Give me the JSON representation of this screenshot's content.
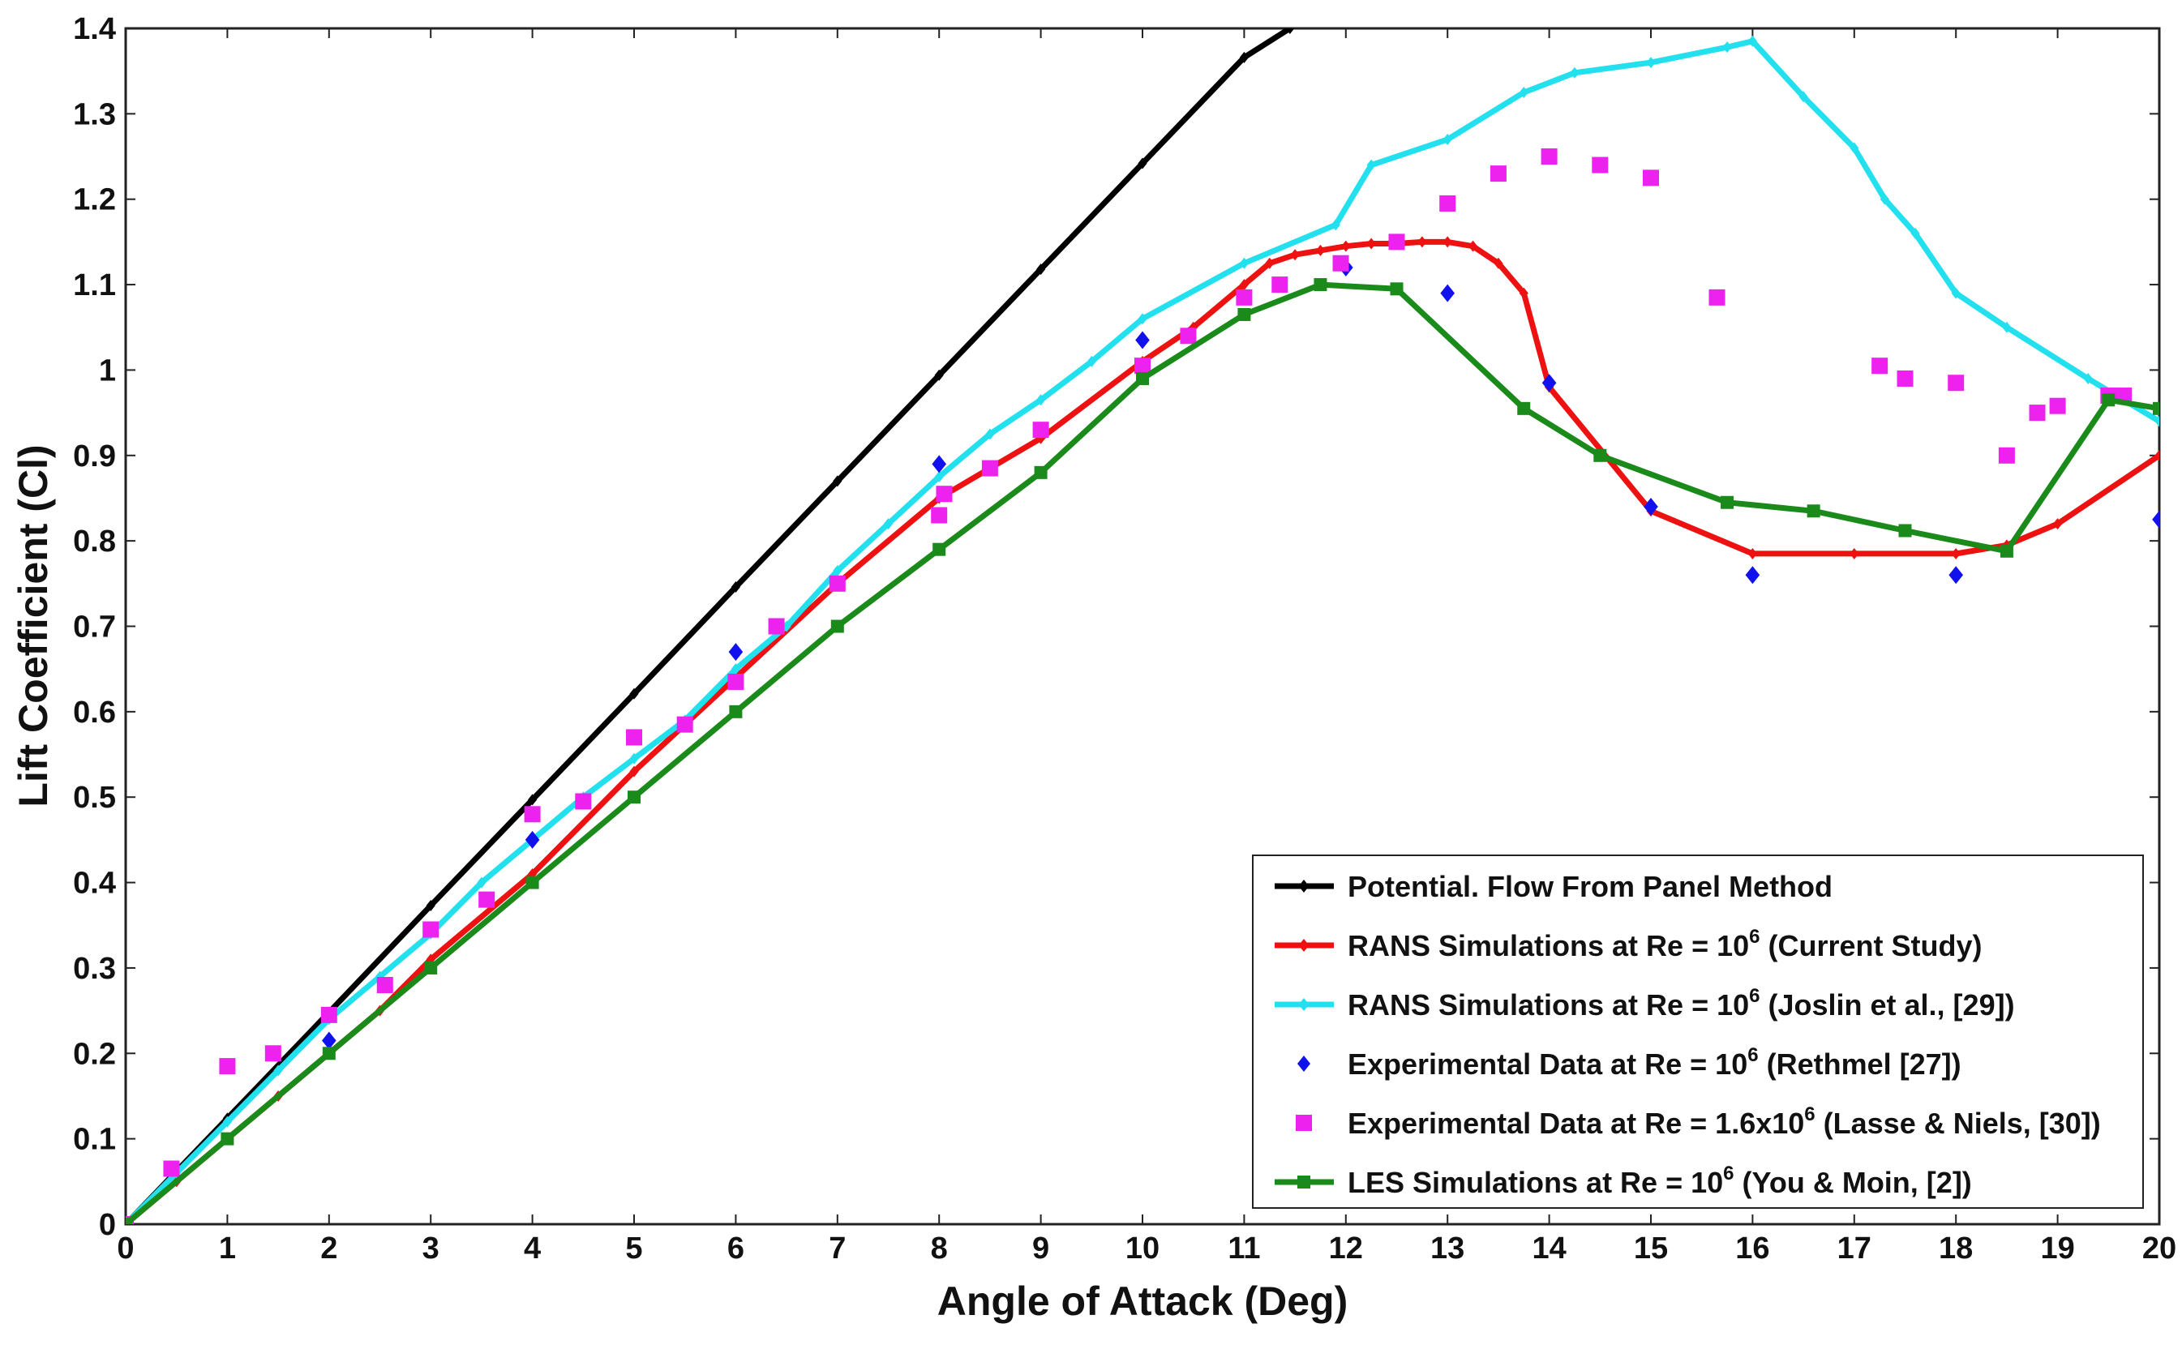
{
  "chart_data": {
    "type": "line",
    "title": "",
    "xlabel": "Angle of Attack (Deg)",
    "ylabel": "Lift Coefficient (Cl)",
    "xlim": [
      0,
      20
    ],
    "ylim": [
      0,
      1.4
    ],
    "xticks": [
      "0",
      "1",
      "2",
      "3",
      "4",
      "5",
      "6",
      "7",
      "8",
      "9",
      "10",
      "11",
      "12",
      "13",
      "14",
      "15",
      "16",
      "17",
      "18",
      "19",
      "20"
    ],
    "yticks": [
      "0",
      "0.1",
      "0.2",
      "0.3",
      "0.4",
      "0.5",
      "0.6",
      "0.7",
      "0.8",
      "0.9",
      "1",
      "1.1",
      "1.2",
      "1.3",
      "1.4"
    ],
    "legend_position": "bottom-right",
    "series": [
      {
        "name": "Potential. Flow From Panel Method",
        "legend": {
          "pre": "Potential. Flow From Panel Method",
          "sup": "",
          "post": ""
        },
        "color": "#000000",
        "line": true,
        "marker": "diamond",
        "points": [
          [
            0,
            0
          ],
          [
            1,
            0.124
          ],
          [
            2,
            0.248
          ],
          [
            3,
            0.373
          ],
          [
            4,
            0.497
          ],
          [
            5,
            0.621
          ],
          [
            6,
            0.746
          ],
          [
            7,
            0.87
          ],
          [
            8,
            0.994
          ],
          [
            9,
            1.118
          ],
          [
            10,
            1.242
          ],
          [
            11,
            1.366
          ],
          [
            11.45,
            1.4
          ]
        ]
      },
      {
        "name": "RANS Simulations at Re = 10^6 (Current Study)",
        "legend": {
          "pre": "RANS Simulations at Re = 10",
          "sup": "6",
          "post": " (Current Study)"
        },
        "color": "#ee1111",
        "line": true,
        "marker": "diamond",
        "points": [
          [
            0,
            0
          ],
          [
            0.5,
            0.05
          ],
          [
            1,
            0.1
          ],
          [
            1.5,
            0.15
          ],
          [
            2,
            0.2
          ],
          [
            2.5,
            0.25
          ],
          [
            3,
            0.31
          ],
          [
            4,
            0.41
          ],
          [
            5,
            0.53
          ],
          [
            6,
            0.64
          ],
          [
            7,
            0.75
          ],
          [
            8,
            0.85
          ],
          [
            9,
            0.92
          ],
          [
            10,
            1.01
          ],
          [
            10.5,
            1.05
          ],
          [
            11,
            1.1
          ],
          [
            11.25,
            1.125
          ],
          [
            11.5,
            1.135
          ],
          [
            11.75,
            1.14
          ],
          [
            12,
            1.145
          ],
          [
            12.25,
            1.148
          ],
          [
            12.5,
            1.148
          ],
          [
            12.75,
            1.15
          ],
          [
            13,
            1.15
          ],
          [
            13.25,
            1.145
          ],
          [
            13.5,
            1.125
          ],
          [
            13.75,
            1.09
          ],
          [
            14,
            0.98
          ],
          [
            15,
            0.835
          ],
          [
            16,
            0.785
          ],
          [
            17,
            0.785
          ],
          [
            18,
            0.785
          ],
          [
            18.5,
            0.795
          ],
          [
            19,
            0.82
          ],
          [
            20,
            0.9
          ]
        ]
      },
      {
        "name": "RANS Simulations at Re = 10^6 (Joslin et al., [29])",
        "legend": {
          "pre": "RANS Simulations at Re = 10",
          "sup": "6",
          "post": " (Joslin et al., [29])"
        },
        "color": "#22e0ee",
        "line": true,
        "marker": "diamond",
        "points": [
          [
            0,
            0
          ],
          [
            0.5,
            0.06
          ],
          [
            1,
            0.12
          ],
          [
            1.5,
            0.18
          ],
          [
            2,
            0.24
          ],
          [
            2.5,
            0.29
          ],
          [
            3,
            0.34
          ],
          [
            3.5,
            0.4
          ],
          [
            4,
            0.45
          ],
          [
            4.5,
            0.5
          ],
          [
            5,
            0.545
          ],
          [
            5.5,
            0.59
          ],
          [
            6,
            0.65
          ],
          [
            6.5,
            0.7
          ],
          [
            7,
            0.765
          ],
          [
            7.5,
            0.82
          ],
          [
            8,
            0.875
          ],
          [
            8.5,
            0.925
          ],
          [
            9,
            0.965
          ],
          [
            9.5,
            1.01
          ],
          [
            10,
            1.06
          ],
          [
            11,
            1.125
          ],
          [
            11.9,
            1.17
          ],
          [
            12.25,
            1.24
          ],
          [
            13,
            1.27
          ],
          [
            13.75,
            1.325
          ],
          [
            14.25,
            1.348
          ],
          [
            15,
            1.36
          ],
          [
            15.75,
            1.378
          ],
          [
            16,
            1.385
          ],
          [
            16.5,
            1.32
          ],
          [
            17,
            1.26
          ],
          [
            17.3,
            1.2
          ],
          [
            17.6,
            1.16
          ],
          [
            18,
            1.09
          ],
          [
            18.5,
            1.05
          ],
          [
            19.3,
            0.99
          ],
          [
            20,
            0.94
          ]
        ]
      },
      {
        "name": "Experimental Data at Re = 10^6 (Rethmel [27])",
        "legend": {
          "pre": "Experimental Data at Re = 10",
          "sup": "6",
          "post": " (Rethmel [27])"
        },
        "color": "#1111ee",
        "line": false,
        "marker": "diamond",
        "points": [
          [
            0,
            0
          ],
          [
            2,
            0.215
          ],
          [
            4,
            0.45
          ],
          [
            6,
            0.67
          ],
          [
            8,
            0.89
          ],
          [
            10,
            1.035
          ],
          [
            12,
            1.12
          ],
          [
            13,
            1.09
          ],
          [
            14,
            0.985
          ],
          [
            15,
            0.84
          ],
          [
            16,
            0.76
          ],
          [
            18,
            0.76
          ],
          [
            20,
            0.825
          ]
        ]
      },
      {
        "name": "Experimental Data at Re = 1.6x10^6 (Lasse & Niels, [30])",
        "legend": {
          "pre": "Experimental Data at Re = 1.6x10",
          "sup": "6",
          "post": " (Lasse & Niels, [30])"
        },
        "color": "#ee22ee",
        "line": false,
        "marker": "square",
        "points": [
          [
            0,
            0
          ],
          [
            0.45,
            0.065
          ],
          [
            1,
            0.185
          ],
          [
            1.45,
            0.2
          ],
          [
            2,
            0.245
          ],
          [
            2.55,
            0.28
          ],
          [
            3,
            0.345
          ],
          [
            3.55,
            0.38
          ],
          [
            4,
            0.48
          ],
          [
            4.5,
            0.495
          ],
          [
            5,
            0.57
          ],
          [
            5.5,
            0.585
          ],
          [
            6,
            0.635
          ],
          [
            6.4,
            0.7
          ],
          [
            7,
            0.75
          ],
          [
            8,
            0.83
          ],
          [
            8.05,
            0.855
          ],
          [
            8.5,
            0.885
          ],
          [
            9,
            0.93
          ],
          [
            10,
            1.005
          ],
          [
            10.45,
            1.04
          ],
          [
            11,
            1.085
          ],
          [
            11.35,
            1.1
          ],
          [
            11.95,
            1.125
          ],
          [
            12.5,
            1.15
          ],
          [
            13,
            1.195
          ],
          [
            13.5,
            1.23
          ],
          [
            14,
            1.25
          ],
          [
            14.5,
            1.24
          ],
          [
            15,
            1.225
          ],
          [
            15.65,
            1.085
          ],
          [
            17.25,
            1.005
          ],
          [
            17.5,
            0.99
          ],
          [
            18,
            0.985
          ],
          [
            18.5,
            0.9
          ],
          [
            18.8,
            0.95
          ],
          [
            19,
            0.958
          ],
          [
            19.5,
            0.97
          ],
          [
            19.65,
            0.97
          ]
        ]
      },
      {
        "name": "LES Simulations at Re = 10^6 (You & Moin, [2])",
        "legend": {
          "pre": "LES Simulations at Re = 10",
          "sup": "6",
          "post": " (You & Moin, [2])"
        },
        "color": "#1a8a1a",
        "line": true,
        "marker": "square",
        "points": [
          [
            0,
            0
          ],
          [
            1,
            0.1
          ],
          [
            2,
            0.2
          ],
          [
            3,
            0.3
          ],
          [
            4,
            0.4
          ],
          [
            5,
            0.5
          ],
          [
            6,
            0.6
          ],
          [
            7,
            0.7
          ],
          [
            8,
            0.79
          ],
          [
            9,
            0.88
          ],
          [
            10,
            0.99
          ],
          [
            11,
            1.065
          ],
          [
            11.75,
            1.1
          ],
          [
            12.5,
            1.095
          ],
          [
            13.75,
            0.955
          ],
          [
            14.5,
            0.9
          ],
          [
            15.75,
            0.845
          ],
          [
            16.6,
            0.835
          ],
          [
            17.5,
            0.812
          ],
          [
            18.5,
            0.788
          ],
          [
            19.5,
            0.965
          ],
          [
            20,
            0.955
          ]
        ]
      }
    ]
  }
}
